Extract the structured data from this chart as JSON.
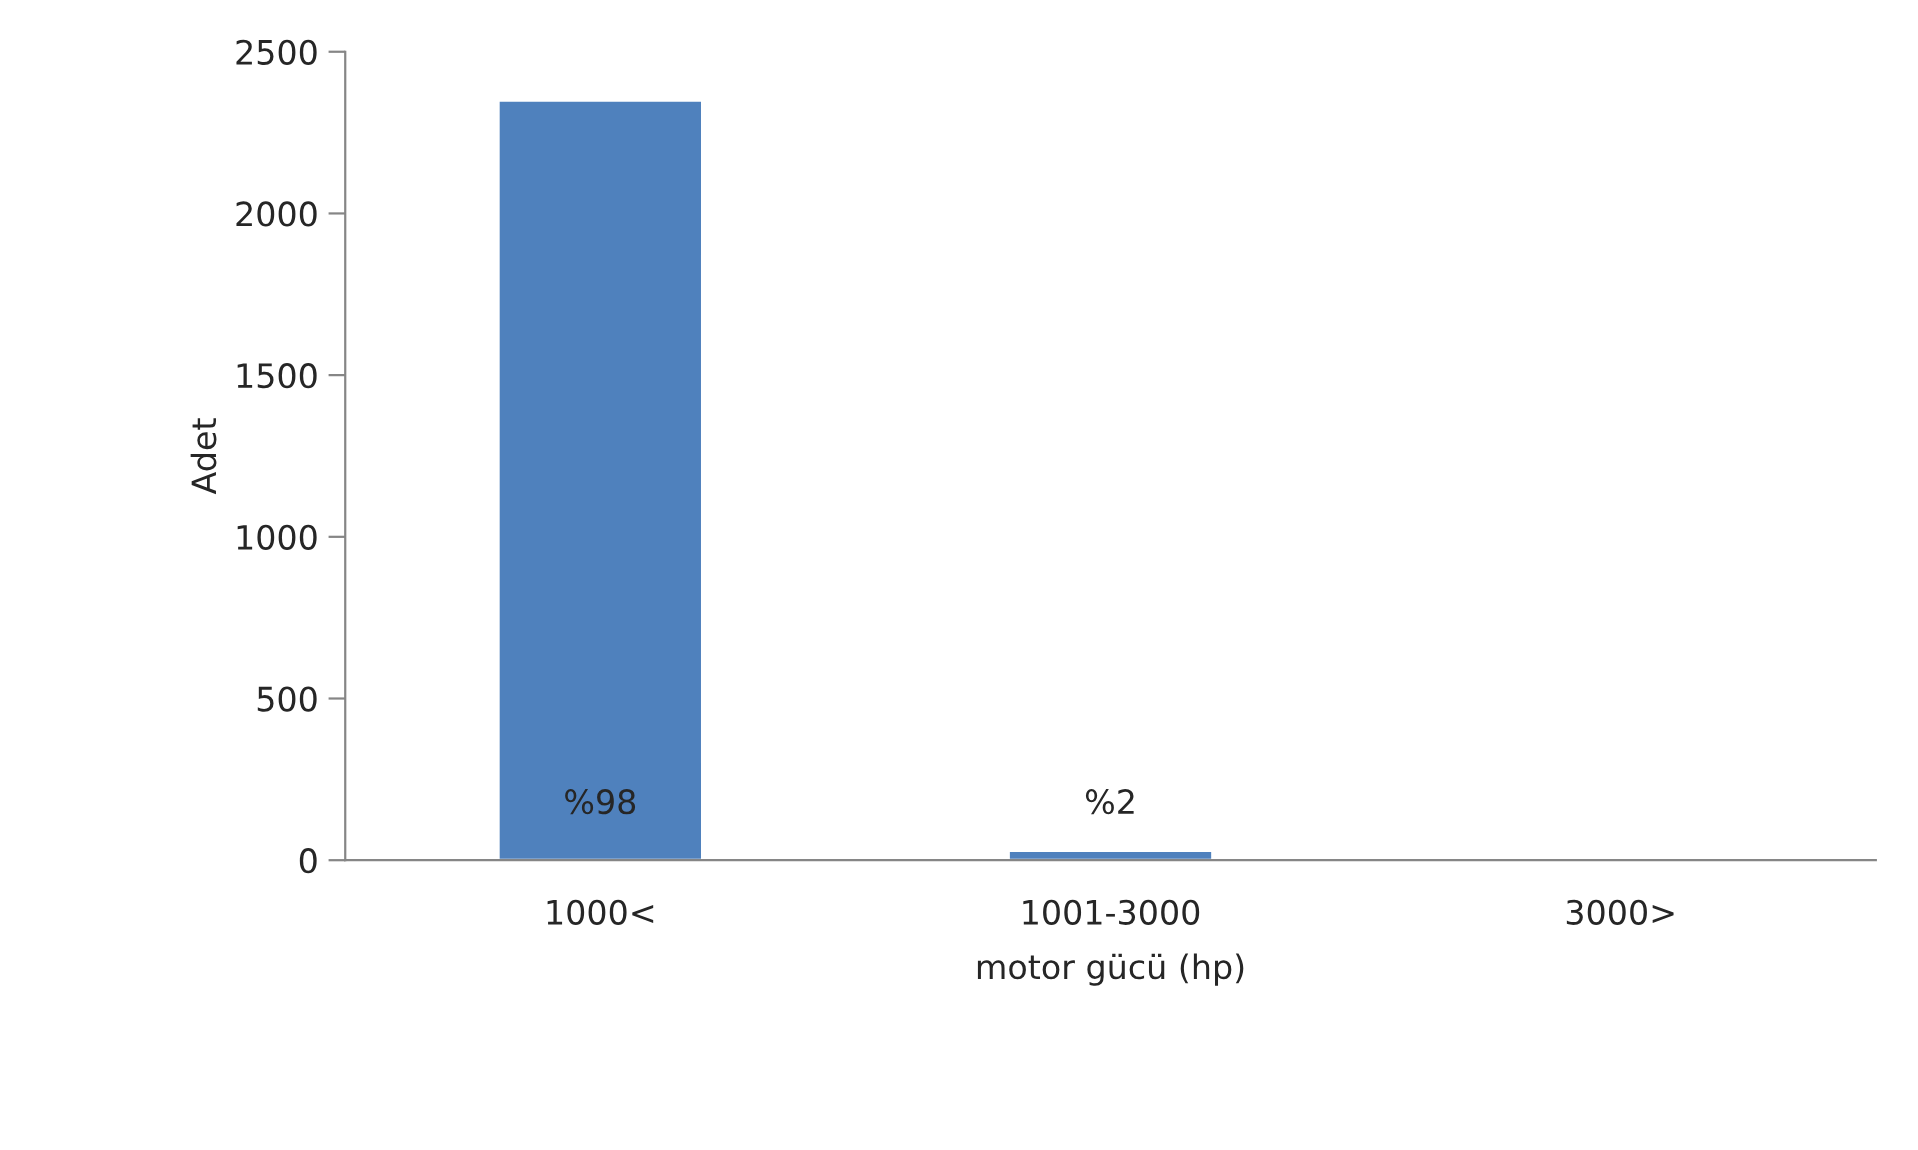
{
  "chart_data": {
    "type": "bar",
    "categories": [
      "1000<",
      "1001-3000",
      "3000>"
    ],
    "values": [
      2350,
      30,
      null
    ],
    "annotations": [
      "%98",
      "%2"
    ],
    "color": "#4f81bd",
    "xlabel": "motor gücü (hp)",
    "ylabel": "Adet",
    "ylim": [
      0,
      2500
    ],
    "yticks": [
      0,
      500,
      1000,
      1500,
      2000,
      2500
    ],
    "grid": false,
    "legend": false
  }
}
